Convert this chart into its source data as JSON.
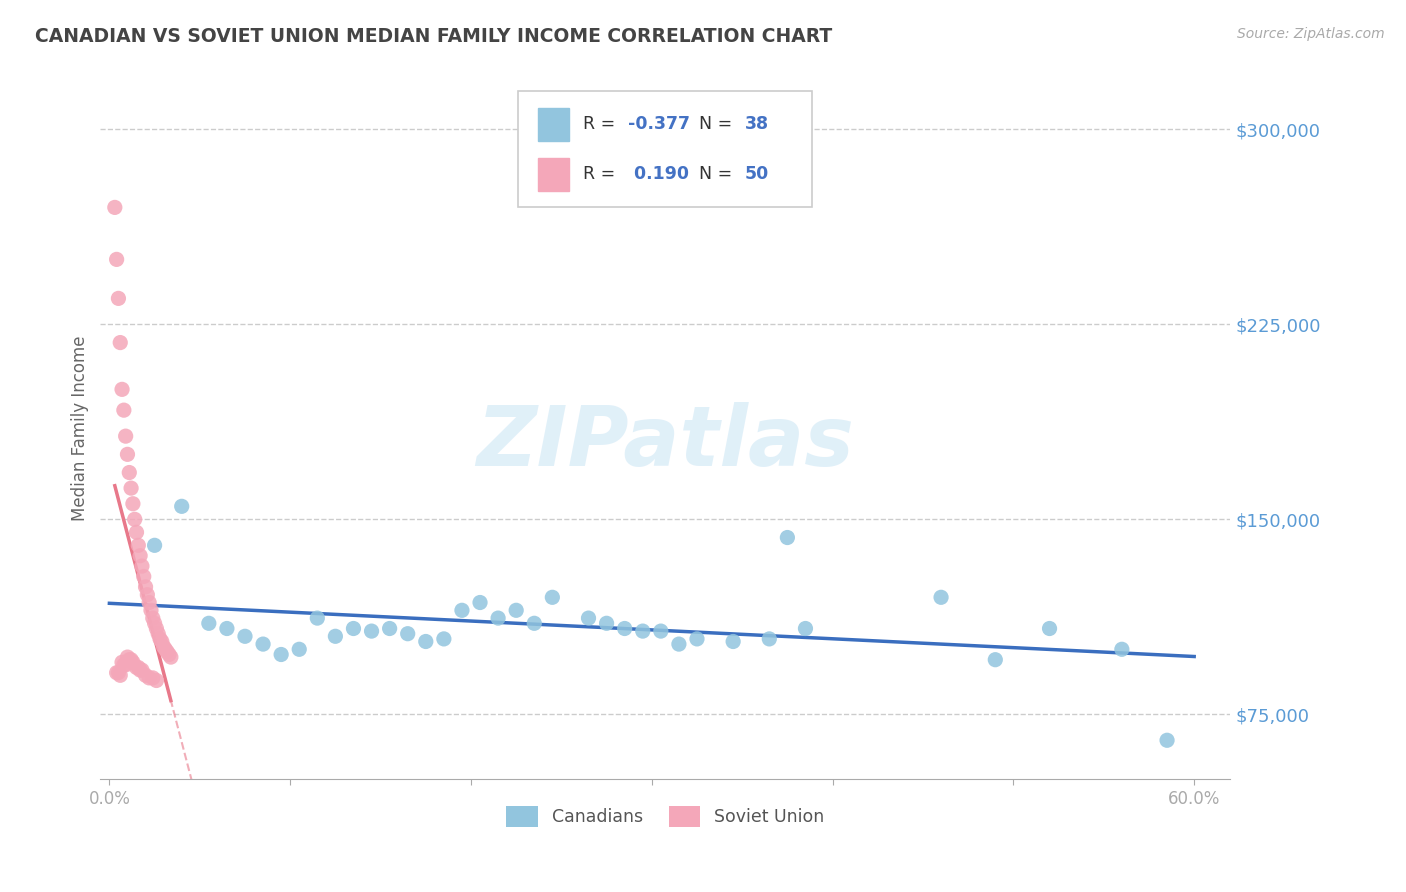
{
  "title": "CANADIAN VS SOVIET UNION MEDIAN FAMILY INCOME CORRELATION CHART",
  "source_text": "Source: ZipAtlas.com",
  "ylabel": "Median Family Income",
  "xlim": [
    -0.005,
    0.62
  ],
  "ylim": [
    50000,
    320000
  ],
  "yticks": [
    75000,
    150000,
    225000,
    300000
  ],
  "ytick_labels": [
    "$75,000",
    "$150,000",
    "$225,000",
    "$300,000"
  ],
  "xticks": [
    0.0,
    0.1,
    0.2,
    0.3,
    0.4,
    0.5,
    0.6
  ],
  "xtick_labels": [
    "0.0%",
    "",
    "",
    "",
    "",
    "",
    "60.0%"
  ],
  "canadians_x": [
    0.025,
    0.04,
    0.055,
    0.065,
    0.075,
    0.085,
    0.095,
    0.105,
    0.115,
    0.125,
    0.135,
    0.145,
    0.155,
    0.165,
    0.175,
    0.185,
    0.195,
    0.205,
    0.215,
    0.225,
    0.235,
    0.245,
    0.265,
    0.275,
    0.285,
    0.295,
    0.305,
    0.315,
    0.325,
    0.345,
    0.365,
    0.375,
    0.385,
    0.46,
    0.49,
    0.52,
    0.56,
    0.585
  ],
  "canadians_y": [
    140000,
    155000,
    110000,
    108000,
    105000,
    102000,
    98000,
    100000,
    112000,
    105000,
    108000,
    107000,
    108000,
    106000,
    103000,
    104000,
    115000,
    118000,
    112000,
    115000,
    110000,
    120000,
    112000,
    110000,
    108000,
    107000,
    107000,
    102000,
    104000,
    103000,
    104000,
    143000,
    108000,
    120000,
    96000,
    108000,
    100000,
    65000
  ],
  "soviet_x": [
    0.003,
    0.004,
    0.005,
    0.006,
    0.007,
    0.008,
    0.009,
    0.01,
    0.011,
    0.012,
    0.013,
    0.014,
    0.015,
    0.016,
    0.017,
    0.018,
    0.019,
    0.02,
    0.021,
    0.022,
    0.023,
    0.024,
    0.025,
    0.026,
    0.027,
    0.028,
    0.029,
    0.03,
    0.031,
    0.032,
    0.033,
    0.034,
    0.01,
    0.011,
    0.012,
    0.013,
    0.007,
    0.008,
    0.009,
    0.015,
    0.016,
    0.017,
    0.018,
    0.004,
    0.005,
    0.006,
    0.02,
    0.022,
    0.024,
    0.026
  ],
  "soviet_y": [
    270000,
    250000,
    235000,
    218000,
    200000,
    192000,
    182000,
    175000,
    168000,
    162000,
    156000,
    150000,
    145000,
    140000,
    136000,
    132000,
    128000,
    124000,
    121000,
    118000,
    115000,
    112000,
    110000,
    108000,
    106000,
    104000,
    103000,
    101000,
    100000,
    99000,
    98000,
    97000,
    97000,
    96000,
    96000,
    95000,
    95000,
    94000,
    94000,
    93000,
    93000,
    92000,
    92000,
    91000,
    91000,
    90000,
    90000,
    89000,
    89000,
    88000
  ],
  "canadian_color": "#92C5DE",
  "soviet_color": "#F4A7B9",
  "canadian_line_color": "#3A6EBF",
  "soviet_line_color": "#E8788A",
  "soviet_line_dash": true,
  "R_canadian": -0.377,
  "N_canadian": 38,
  "R_soviet": 0.19,
  "N_soviet": 50,
  "watermark": "ZIPatlas",
  "background_color": "#FFFFFF",
  "grid_color": "#CCCCCC",
  "title_color": "#444444",
  "ytick_color": "#5B9BD5",
  "legend_R_color": "#4472C4",
  "legend_N_color": "#4472C4"
}
